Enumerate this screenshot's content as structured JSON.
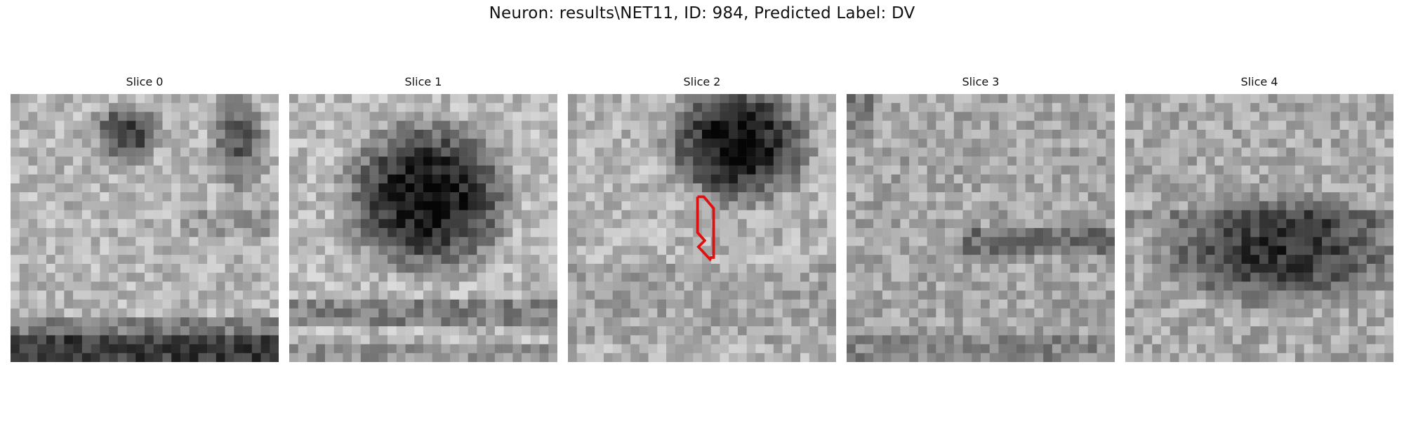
{
  "figure": {
    "title": "Neuron: results\\NET11, ID: 984, Predicted Label: DV"
  },
  "panels": [
    {
      "title": "Slice 0",
      "pattern": "two-dark-blobs-top-dark-band-bottom"
    },
    {
      "title": "Slice 1",
      "pattern": "large-dark-cell-center-dark-band-bottom"
    },
    {
      "title": "Slice 2",
      "pattern": "dark-cell-top-with-red-outline-below"
    },
    {
      "title": "Slice 3",
      "pattern": "noisy-dark-band-middle-right"
    },
    {
      "title": "Slice 4",
      "pattern": "noisy-dark-region-center-right"
    }
  ],
  "colors": {
    "outline": "#e01010",
    "background": "#ffffff"
  }
}
